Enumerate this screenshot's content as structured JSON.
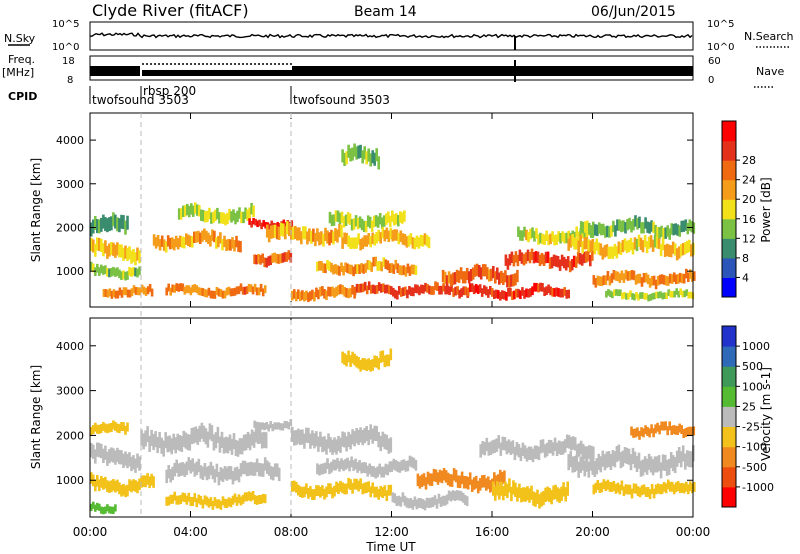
{
  "header": {
    "station": "Clyde River (fitACF)",
    "beam": "Beam 14",
    "date": "06/Jun/2015"
  },
  "nsky_panel": {
    "left_label": "N.Sky",
    "right_label": "N.Search",
    "left_ticks": [
      "10^5",
      "10^0"
    ],
    "right_ticks": [
      "10^5",
      "10^0"
    ]
  },
  "freq_panel": {
    "left_label_1": "Freq.",
    "left_label_2": "[MHz]",
    "right_label": "Nave",
    "left_ticks": [
      "18",
      "8"
    ],
    "right_ticks": [
      "60",
      "0"
    ]
  },
  "cpid": {
    "label": "CPID",
    "programs": [
      {
        "name": "twofsound 3503",
        "start_hour": 0
      },
      {
        "name": "rbsp 200",
        "start_hour": 2
      },
      {
        "name": "twofsound 3503",
        "start_hour": 8
      }
    ]
  },
  "colors": {
    "power_scale": [
      "#0000ff",
      "#2b55b8",
      "#3a8c6e",
      "#7ac144",
      "#f2e11a",
      "#f59c1a",
      "#ef6a10",
      "#e4311c",
      "#ff0000"
    ],
    "velocity_scale": [
      "#2233cc",
      "#2e6ab8",
      "#3f9a5a",
      "#55bb33",
      "#bbbbbb",
      "#f2c21a",
      "#f08a20",
      "#ee4d10",
      "#ff0000"
    ]
  },
  "chart_data": [
    {
      "type": "heatmap",
      "quantity": "Power",
      "ylabel": "Slant Range [km]",
      "xlabel": "",
      "yticks": [
        1000,
        2000,
        3000,
        4000
      ],
      "ylim": [
        180,
        4620
      ],
      "xlim": [
        0,
        24
      ],
      "colorbar_label": "Power [dB]",
      "colorbar_ticks": [
        "4",
        "8",
        "12",
        "16",
        "20",
        "24",
        "28"
      ],
      "colorbar_range": [
        0,
        32
      ],
      "bands": [
        {
          "start": 0.0,
          "end": 1.5,
          "center": 2050,
          "width": 320,
          "value": 10
        },
        {
          "start": 0.0,
          "end": 2.0,
          "center": 1450,
          "width": 300,
          "value": 18
        },
        {
          "start": 0.0,
          "end": 2.0,
          "center": 1000,
          "width": 200,
          "value": 13
        },
        {
          "start": 0.5,
          "end": 2.5,
          "center": 520,
          "width": 180,
          "value": 21
        },
        {
          "start": 2.5,
          "end": 6.0,
          "center": 1700,
          "width": 260,
          "value": 20
        },
        {
          "start": 3.5,
          "end": 6.5,
          "center": 2300,
          "width": 260,
          "value": 14
        },
        {
          "start": 3.0,
          "end": 7.0,
          "center": 550,
          "width": 180,
          "value": 22
        },
        {
          "start": 6.3,
          "end": 8.0,
          "center": 2100,
          "width": 150,
          "value": 28
        },
        {
          "start": 6.5,
          "end": 8.0,
          "center": 1300,
          "width": 220,
          "value": 23
        },
        {
          "start": 7.0,
          "end": 10.0,
          "center": 1850,
          "width": 300,
          "value": 19
        },
        {
          "start": 8.0,
          "end": 10.5,
          "center": 500,
          "width": 220,
          "value": 21
        },
        {
          "start": 9.5,
          "end": 12.5,
          "center": 2150,
          "width": 260,
          "value": 14
        },
        {
          "start": 10.0,
          "end": 13.5,
          "center": 1750,
          "width": 260,
          "value": 18
        },
        {
          "start": 9.0,
          "end": 13.0,
          "center": 1100,
          "width": 220,
          "value": 20
        },
        {
          "start": 10.5,
          "end": 15.0,
          "center": 560,
          "width": 200,
          "value": 25
        },
        {
          "start": 10.0,
          "end": 11.5,
          "center": 3600,
          "width": 300,
          "value": 12
        },
        {
          "start": 14.0,
          "end": 17.0,
          "center": 900,
          "width": 280,
          "value": 24
        },
        {
          "start": 15.0,
          "end": 19.0,
          "center": 520,
          "width": 200,
          "value": 27
        },
        {
          "start": 16.5,
          "end": 20.0,
          "center": 1250,
          "width": 260,
          "value": 26
        },
        {
          "start": 17.0,
          "end": 20.0,
          "center": 1800,
          "width": 240,
          "value": 15
        },
        {
          "start": 19.0,
          "end": 24.0,
          "center": 1550,
          "width": 280,
          "value": 17
        },
        {
          "start": 19.5,
          "end": 24.0,
          "center": 2000,
          "width": 260,
          "value": 12
        },
        {
          "start": 20.0,
          "end": 24.0,
          "center": 820,
          "width": 220,
          "value": 21
        },
        {
          "start": 20.5,
          "end": 24.0,
          "center": 450,
          "width": 150,
          "value": 14
        }
      ]
    },
    {
      "type": "heatmap",
      "quantity": "Velocity",
      "ylabel": "Slant Range [km]",
      "xlabel": "Time UT",
      "xticks": [
        "00:00",
        "04:00",
        "08:00",
        "12:00",
        "16:00",
        "20:00",
        "00:00"
      ],
      "yticks": [
        1000,
        2000,
        3000,
        4000
      ],
      "ylim": [
        180,
        4620
      ],
      "xlim": [
        0,
        24
      ],
      "colorbar_label": "Velocity [m s-1]",
      "colorbar_ticks": [
        "1000",
        "500",
        "100",
        "25",
        "-25",
        "-100",
        "-500",
        "-1000"
      ],
      "colorbar_range": [
        -1000,
        1000
      ],
      "bands": [
        {
          "start": 0.0,
          "end": 1.5,
          "center": 2150,
          "width": 200,
          "value": -300
        },
        {
          "start": 0.0,
          "end": 2.0,
          "center": 1500,
          "width": 320,
          "value": 0
        },
        {
          "start": 0.0,
          "end": 2.5,
          "center": 900,
          "width": 260,
          "value": -150
        },
        {
          "start": 0.0,
          "end": 1.0,
          "center": 400,
          "width": 160,
          "value": 150
        },
        {
          "start": 2.0,
          "end": 7.0,
          "center": 1900,
          "width": 360,
          "value": 0
        },
        {
          "start": 3.0,
          "end": 7.5,
          "center": 1200,
          "width": 300,
          "value": 0
        },
        {
          "start": 3.0,
          "end": 7.0,
          "center": 550,
          "width": 200,
          "value": -200
        },
        {
          "start": 6.5,
          "end": 8.0,
          "center": 2250,
          "width": 160,
          "value": -60
        },
        {
          "start": 8.0,
          "end": 12.0,
          "center": 1900,
          "width": 340,
          "value": 0
        },
        {
          "start": 8.0,
          "end": 12.0,
          "center": 800,
          "width": 240,
          "value": -300
        },
        {
          "start": 9.0,
          "end": 13.0,
          "center": 1300,
          "width": 240,
          "value": 0
        },
        {
          "start": 10.0,
          "end": 12.0,
          "center": 3700,
          "width": 260,
          "value": -200
        },
        {
          "start": 12.0,
          "end": 15.0,
          "center": 550,
          "width": 220,
          "value": -60
        },
        {
          "start": 13.0,
          "end": 16.5,
          "center": 1000,
          "width": 280,
          "value": -400
        },
        {
          "start": 16.0,
          "end": 19.0,
          "center": 700,
          "width": 320,
          "value": -200
        },
        {
          "start": 15.5,
          "end": 20.0,
          "center": 1700,
          "width": 300,
          "value": 0
        },
        {
          "start": 19.0,
          "end": 24.0,
          "center": 1400,
          "width": 360,
          "value": 0
        },
        {
          "start": 20.0,
          "end": 24.0,
          "center": 800,
          "width": 220,
          "value": -150
        },
        {
          "start": 21.5,
          "end": 24.0,
          "center": 2100,
          "width": 200,
          "value": -500
        }
      ]
    }
  ]
}
